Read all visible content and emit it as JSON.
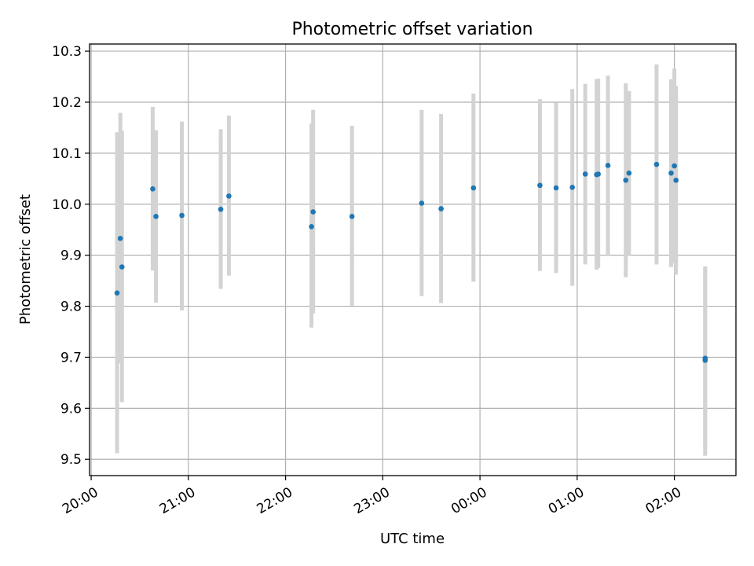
{
  "chart_data": {
    "type": "scatter",
    "title": "Photometric offset variation",
    "xlabel": "UTC time",
    "ylabel": "Photometric offset",
    "x_ticks": [
      {
        "t": "20:00",
        "label": "20:00"
      },
      {
        "t": "21:00",
        "label": "21:00"
      },
      {
        "t": "22:00",
        "label": "22:00"
      },
      {
        "t": "23:00",
        "label": "23:00"
      },
      {
        "t": "00:00",
        "label": "00:00"
      },
      {
        "t": "01:00",
        "label": "01:00"
      },
      {
        "t": "02:00",
        "label": "02:00"
      }
    ],
    "y_ticks": [
      9.5,
      9.6,
      9.7,
      9.8,
      9.9,
      10.0,
      10.1,
      10.2,
      10.3
    ],
    "xlim": [
      "19:59",
      "02:38"
    ],
    "ylim": [
      9.468,
      10.314
    ],
    "grid": true,
    "colors": {
      "point": "#1f77b4",
      "errorbar": "#d3d3d3",
      "grid": "#b0b0b0"
    },
    "points": [
      {
        "t": "20:16",
        "y": 9.826,
        "lo": 9.512,
        "hi": 10.141
      },
      {
        "t": "20:18",
        "y": 9.933,
        "lo": 9.688,
        "hi": 10.179
      },
      {
        "t": "20:19",
        "y": 9.877,
        "lo": 9.612,
        "hi": 10.144
      },
      {
        "t": "20:38",
        "y": 10.03,
        "lo": 9.87,
        "hi": 10.191
      },
      {
        "t": "20:40",
        "y": 9.976,
        "lo": 9.807,
        "hi": 10.145
      },
      {
        "t": "20:56",
        "y": 9.978,
        "lo": 9.792,
        "hi": 10.162
      },
      {
        "t": "21:20",
        "y": 9.99,
        "lo": 9.834,
        "hi": 10.147
      },
      {
        "t": "21:25",
        "y": 10.016,
        "lo": 9.86,
        "hi": 10.174
      },
      {
        "t": "22:16",
        "y": 9.956,
        "lo": 9.758,
        "hi": 10.158
      },
      {
        "t": "22:17",
        "y": 9.985,
        "lo": 9.786,
        "hi": 10.185
      },
      {
        "t": "22:41",
        "y": 9.976,
        "lo": 9.801,
        "hi": 10.154
      },
      {
        "t": "23:24",
        "y": 10.002,
        "lo": 9.82,
        "hi": 10.185
      },
      {
        "t": "23:36",
        "y": 9.991,
        "lo": 9.806,
        "hi": 10.177
      },
      {
        "t": "23:56",
        "y": 10.032,
        "lo": 9.848,
        "hi": 10.217
      },
      {
        "t": "00:37",
        "y": 10.037,
        "lo": 9.869,
        "hi": 10.206
      },
      {
        "t": "00:47",
        "y": 10.032,
        "lo": 9.865,
        "hi": 10.199
      },
      {
        "t": "00:57",
        "y": 10.033,
        "lo": 9.84,
        "hi": 10.226
      },
      {
        "t": "01:05",
        "y": 10.059,
        "lo": 9.882,
        "hi": 10.236
      },
      {
        "t": "01:12",
        "y": 10.058,
        "lo": 9.872,
        "hi": 10.245
      },
      {
        "t": "01:13",
        "y": 10.059,
        "lo": 9.875,
        "hi": 10.246
      },
      {
        "t": "01:19",
        "y": 10.076,
        "lo": 9.9,
        "hi": 10.252
      },
      {
        "t": "01:30",
        "y": 10.047,
        "lo": 9.857,
        "hi": 10.237
      },
      {
        "t": "01:32",
        "y": 10.061,
        "lo": 9.9,
        "hi": 10.222
      },
      {
        "t": "01:49",
        "y": 10.078,
        "lo": 9.882,
        "hi": 10.274
      },
      {
        "t": "01:58",
        "y": 10.061,
        "lo": 9.877,
        "hi": 10.245
      },
      {
        "t": "02:00",
        "y": 10.075,
        "lo": 9.885,
        "hi": 10.266
      },
      {
        "t": "02:01",
        "y": 10.047,
        "lo": 9.862,
        "hi": 10.232
      },
      {
        "t": "02:19",
        "y": 9.694,
        "lo": 9.507,
        "hi": 9.878
      },
      {
        "t": "02:19",
        "y": 9.698,
        "lo": 9.52,
        "hi": 9.876
      }
    ]
  }
}
